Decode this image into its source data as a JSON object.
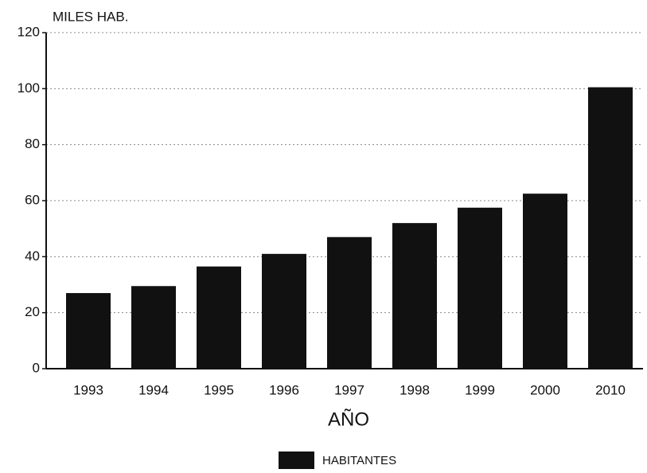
{
  "chart_data": {
    "type": "bar",
    "y_label": "MILES HAB.",
    "x_label": "AÑO",
    "categories": [
      "1993",
      "1994",
      "1995",
      "1996",
      "1997",
      "1998",
      "1999",
      "2000",
      "2010"
    ],
    "series": [
      {
        "name": "HABITANTES",
        "color": "#111111",
        "values": [
          27,
          29.5,
          36.5,
          41,
          47,
          52,
          57.5,
          62.5,
          100.5
        ]
      }
    ],
    "ylim": [
      0,
      120
    ],
    "yticks": [
      0,
      20,
      40,
      60,
      80,
      100,
      120
    ],
    "grid": true
  }
}
